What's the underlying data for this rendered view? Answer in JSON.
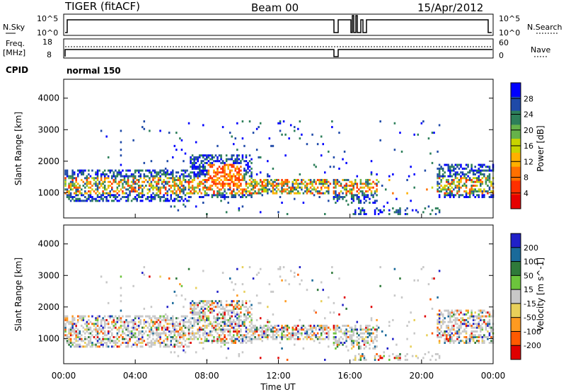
{
  "header": {
    "station": "TIGER (fitACF)",
    "beam": "Beam 00",
    "date": "15/Apr/2012"
  },
  "status_panels": {
    "nsky_label": "N.Sky",
    "nsky_ticks": [
      "10^5",
      "10^0"
    ],
    "nsearch_label": "N.Search",
    "nsearch_ticks": [
      "10^5",
      "10^0"
    ],
    "freq_label": "Freq.",
    "freq_unit": "[MHz]",
    "freq_ticks": [
      "18",
      "8"
    ],
    "nave_label": "Nave",
    "nave_ticks": [
      "60",
      "0"
    ],
    "cpid_label": "CPID",
    "cpid_value": "normal 150"
  },
  "colors": {
    "power_scale": [
      "#0000ff",
      "#1f4aa8",
      "#2d7f5a",
      "#66b24a",
      "#c8d400",
      "#ffb000",
      "#ff7000",
      "#ff3000",
      "#e60000"
    ],
    "velocity_scale": [
      "#2020c8",
      "#1a6a9a",
      "#2f7a3a",
      "#6cc43c",
      "#c8c8c8",
      "#e8d05a",
      "#ff9a20",
      "#ff5a00",
      "#e00000"
    ]
  },
  "chart_data": [
    {
      "type": "heatmap",
      "name": "power",
      "ylabel": "Slant Range [km]",
      "yticks": [
        "1000",
        "2000",
        "3000",
        "4000"
      ],
      "ylim": [
        200,
        4600
      ],
      "colorbar_label": "Power [dB]",
      "colorbar_ticks": [
        "4",
        "8",
        "12",
        "16",
        "20",
        "24",
        "28"
      ],
      "colorbar_range": [
        0,
        30
      ]
    },
    {
      "type": "heatmap",
      "name": "velocity",
      "ylabel": "Slant Range [km]",
      "yticks": [
        "1000",
        "2000",
        "3000",
        "4000"
      ],
      "ylim": [
        200,
        4600
      ],
      "xlabel": "Time UT",
      "xticks": [
        "00:00",
        "04:00",
        "08:00",
        "12:00",
        "16:00",
        "20:00",
        "00:00"
      ],
      "xlim": [
        0,
        24
      ],
      "colorbar_label": "Velocity [m s^-1]",
      "colorbar_ticks": [
        "200",
        "100",
        "50",
        "15",
        "-15",
        "-50",
        "-100",
        "-200"
      ]
    }
  ]
}
